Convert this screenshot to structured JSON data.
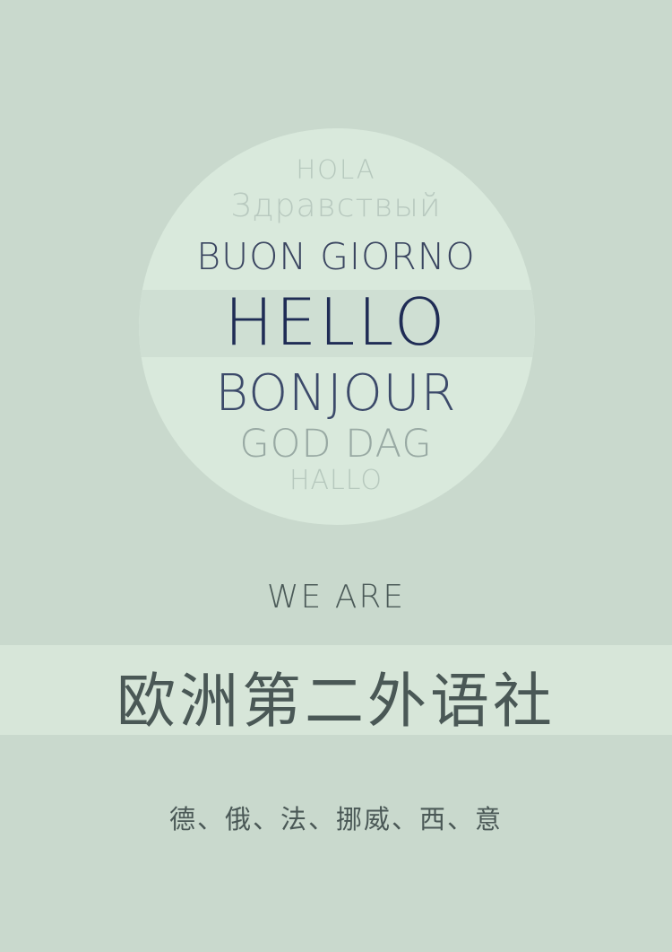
{
  "greetings": {
    "hola": "HOLA",
    "zdravstvuy": "Здравствый",
    "buon_giorno": "BUON GIORNO",
    "hello": "HELLO",
    "bonjour": "BONJOUR",
    "god_dag": "GOD DAG",
    "hallo": "HALLO"
  },
  "we_are": "WE ARE",
  "title": "欧洲第二外语社",
  "languages": "德、俄、法、挪威、西、意",
  "colors": {
    "background": "#c9d9cd",
    "circle": "#d9e9dc",
    "band": "#d7e6d9",
    "accent_navy": "#1f2c55",
    "text_gray": "#4a5856"
  }
}
